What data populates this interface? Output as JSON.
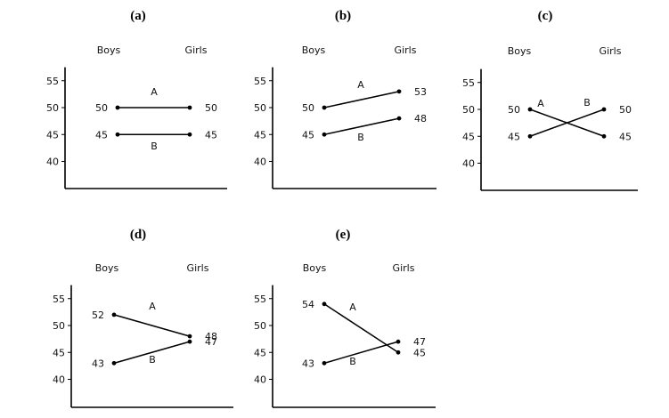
{
  "chart_data": [
    {
      "type": "line",
      "panel_label": "(a)",
      "categories": [
        "Boys",
        "Girls"
      ],
      "ylim": [
        35,
        60
      ],
      "yticks": [
        55,
        50,
        45,
        40
      ],
      "series": [
        {
          "name": "A",
          "values": [
            50,
            50
          ],
          "value_labels": [
            "50",
            "50"
          ]
        },
        {
          "name": "B",
          "values": [
            45,
            45
          ],
          "value_labels": [
            "45",
            "45"
          ]
        }
      ]
    },
    {
      "type": "line",
      "panel_label": "(b)",
      "categories": [
        "Boys",
        "Girls"
      ],
      "ylim": [
        35,
        60
      ],
      "yticks": [
        55,
        50,
        45,
        40
      ],
      "series": [
        {
          "name": "A",
          "values": [
            50,
            53
          ],
          "value_labels": [
            "50",
            "53"
          ]
        },
        {
          "name": "B",
          "values": [
            45,
            48
          ],
          "value_labels": [
            "45",
            "48"
          ]
        }
      ]
    },
    {
      "type": "line",
      "panel_label": "(c)",
      "categories": [
        "Boys",
        "Girls"
      ],
      "ylim": [
        35,
        60
      ],
      "yticks": [
        55,
        50,
        45,
        40
      ],
      "series": [
        {
          "name": "A",
          "values": [
            50,
            45
          ],
          "value_labels": [
            "50",
            "45"
          ]
        },
        {
          "name": "B",
          "values": [
            45,
            50
          ],
          "value_labels": [
            "45",
            "50"
          ]
        }
      ]
    },
    {
      "type": "line",
      "panel_label": "(d)",
      "categories": [
        "Boys",
        "Girls"
      ],
      "ylim": [
        35,
        60
      ],
      "yticks": [
        55,
        50,
        45,
        40
      ],
      "series": [
        {
          "name": "A",
          "values": [
            52,
            48
          ],
          "value_labels": [
            "52",
            "48"
          ]
        },
        {
          "name": "B",
          "values": [
            43,
            47
          ],
          "value_labels": [
            "43",
            "47"
          ]
        }
      ]
    },
    {
      "type": "line",
      "panel_label": "(e)",
      "categories": [
        "Boys",
        "Girls"
      ],
      "ylim": [
        35,
        60
      ],
      "yticks": [
        55,
        50,
        45,
        40
      ],
      "series": [
        {
          "name": "A",
          "values": [
            54,
            45
          ],
          "value_labels": [
            "54",
            "45"
          ]
        },
        {
          "name": "B",
          "values": [
            43,
            47
          ],
          "value_labels": [
            "43",
            "47"
          ]
        }
      ]
    }
  ]
}
